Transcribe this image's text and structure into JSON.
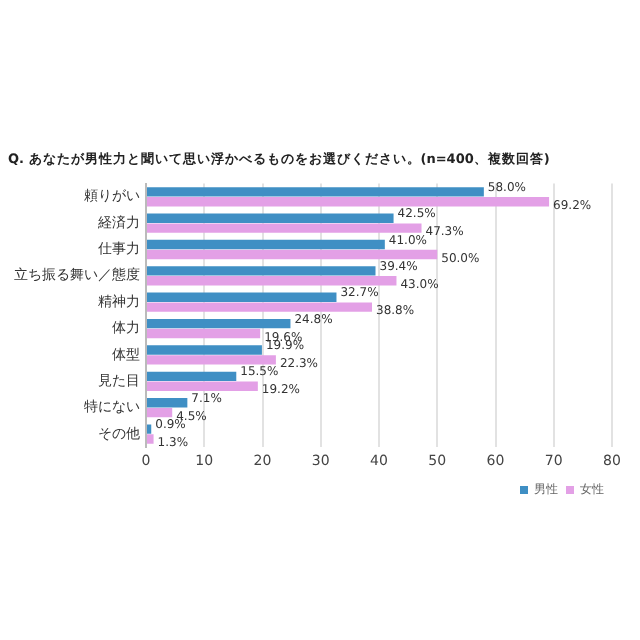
{
  "chart_data": {
    "type": "bar",
    "orientation": "horizontal",
    "title": "Q. あなたが男性力と聞いて思い浮かべるものをお選びください。(n=400、複数回答)",
    "categories": [
      "頼りがい",
      "経済力",
      "仕事力",
      "立ち振る舞い／態度",
      "精神力",
      "体力",
      "体型",
      "見た目",
      "特にない",
      "その他"
    ],
    "series": [
      {
        "name": "男性",
        "color": "#3f8fc4",
        "values": [
          58.0,
          42.5,
          41.0,
          39.4,
          32.7,
          24.8,
          19.9,
          15.5,
          7.1,
          0.9
        ],
        "value_labels": [
          "58.0%",
          "42.5%",
          "41.0%",
          "39.4%",
          "32.7%",
          "24.8%",
          "19.9%",
          "15.5%",
          "7.1%",
          "0.9%"
        ]
      },
      {
        "name": "女性",
        "color": "#e3a0e6",
        "values": [
          69.2,
          47.3,
          50.0,
          43.0,
          38.8,
          19.6,
          22.3,
          19.2,
          4.5,
          1.3
        ],
        "value_labels": [
          "69.2%",
          "47.3%",
          "50.0%",
          "43.0%",
          "38.8%",
          "19.6%",
          "22.3%",
          "19.2%",
          "4.5%",
          "1.3%"
        ]
      }
    ],
    "xlim": [
      0,
      80
    ],
    "xticks": [
      0,
      10,
      20,
      30,
      40,
      50,
      60,
      70,
      80
    ],
    "grid": "x",
    "legend": "bottom right"
  }
}
